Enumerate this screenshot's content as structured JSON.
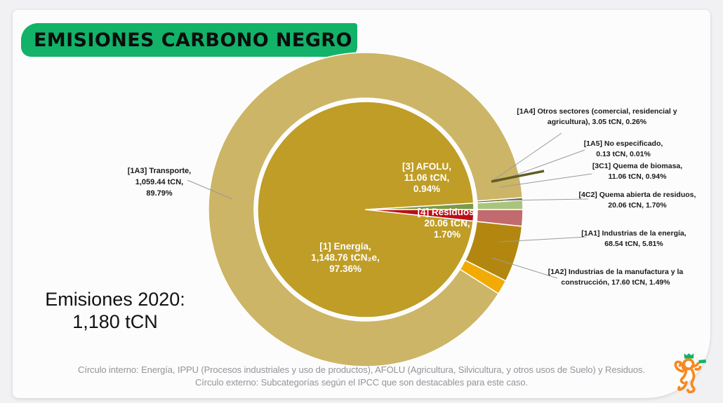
{
  "header": {
    "title": "EMISIONES CARBONO NEGRO",
    "highlight_color": "#12b269"
  },
  "summary": {
    "text": "Emisiones 2020:\n1,180 tCN",
    "year": "2020",
    "total": "1,180 tCN"
  },
  "footnote": {
    "text": "Círculo interno: Energía, IPPU (Procesos industriales y uso de productos), AFOLU (Agricultura, Silvicultura, y otros usos de Suelo) y Residuos.\nCírculo externo: Subcategorías según el IPCC que son destacables para este caso."
  },
  "chart_data": {
    "type": "pie",
    "subtype": "two-ring sunburst (inner categories, outer IPCC subcategories)",
    "title": "EMISIONES CARBONO NEGRO",
    "units": "tCN",
    "total_value": 1180,
    "start_angle_deg": 96.12,
    "grid": false,
    "legend": "none (direct labels with leader lines)",
    "rings": {
      "inner": {
        "slices": [
          {
            "code": "1",
            "name": "Energía",
            "value": 1148.76,
            "pct": 97.36,
            "color": "#bf9d26",
            "label": "[1] Energía,\n1,148.76 tCN₂e,\n97.36%"
          },
          {
            "code": "3",
            "name": "AFOLU",
            "value": 11.06,
            "pct": 0.94,
            "color": "#7d9a47",
            "label": "[3] AFOLU,\n11.06 tCN,\n0.94%"
          },
          {
            "code": "4",
            "name": "Residuos",
            "value": 20.06,
            "pct": 1.7,
            "color": "#bb0e16",
            "label": "[4] Residuos,\n20.06 tCN,\n1.70%"
          }
        ]
      },
      "outer": {
        "slices": [
          {
            "code": "1A1",
            "name": "Industrias de la energía",
            "value": 68.54,
            "pct": 5.81,
            "color": "#b3870f",
            "label": "[1A1] Industrias de la energía,\n68.54 tCN,  5.81%"
          },
          {
            "code": "1A2",
            "name": "Industrias de la manufactura y la construcción",
            "value": 17.6,
            "pct": 1.49,
            "color": "#f2ab05",
            "label": "[1A2] Industrias de la manufactura  y la\nconstrucción,   17.60 tCN, 1.49%"
          },
          {
            "code": "1A3",
            "name": "Transporte",
            "value": 1059.44,
            "pct": 89.79,
            "color": "#ccb566",
            "label": "[1A3] Transporte,\n1,059.44 tCN,\n89.79%"
          },
          {
            "code": "1A4",
            "name": "Otros sectores (comercial, residencial y agricultura)",
            "value": 3.05,
            "pct": 0.26,
            "color": "#696728",
            "label": "[1A4] Otros sectores (comercial, residencial y\nagricultura),  3.05 tCN, 0.26%"
          },
          {
            "code": "1A5",
            "name": "No especificado",
            "value": 0.13,
            "pct": 0.01,
            "color": "#8c8c5a",
            "label": "[1A5] No especificado,\n0.13 tCN, 0.01%"
          },
          {
            "code": "3C1",
            "name": "Quema de biomasa",
            "value": 11.06,
            "pct": 0.94,
            "color": "#a9c57d",
            "label": "[3C1] Quema de biomasa,\n11.06 tCN, 0.94%"
          },
          {
            "code": "4C2",
            "name": "Quema abierta de residuos",
            "value": 20.06,
            "pct": 1.7,
            "color": "#c26b6f",
            "label": "[4C2] Quema abierta de residuos,\n20.06 tCN, 1.70%"
          }
        ]
      }
    }
  },
  "logo": {
    "name": "lion-with-crown-and-flag",
    "outline_color": "#f6891f",
    "accent_color": "#12b269"
  }
}
